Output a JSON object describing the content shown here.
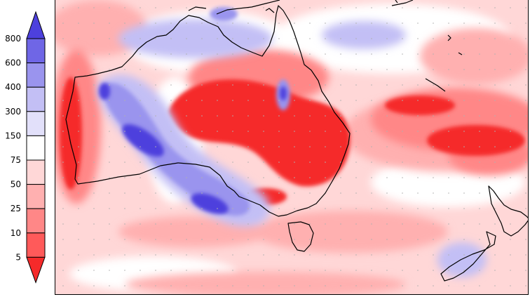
{
  "legend": {
    "labels": [
      "800",
      "600",
      "400",
      "300",
      "150",
      "75",
      "50",
      "25",
      "10",
      "5"
    ],
    "colors": [
      "#4d40dd",
      "#6f66e6",
      "#9a94ee",
      "#c3bff5",
      "#e2e0fa",
      "#ffffff",
      "#ffd7d7",
      "#ffb0b0",
      "#ff8787",
      "#ff5a5a",
      "#f52a2a"
    ]
  },
  "map": {
    "region": "Australia and New Zealand",
    "lon_range": [
      108,
      180
    ],
    "lat_range": [
      -50,
      -5
    ]
  }
}
